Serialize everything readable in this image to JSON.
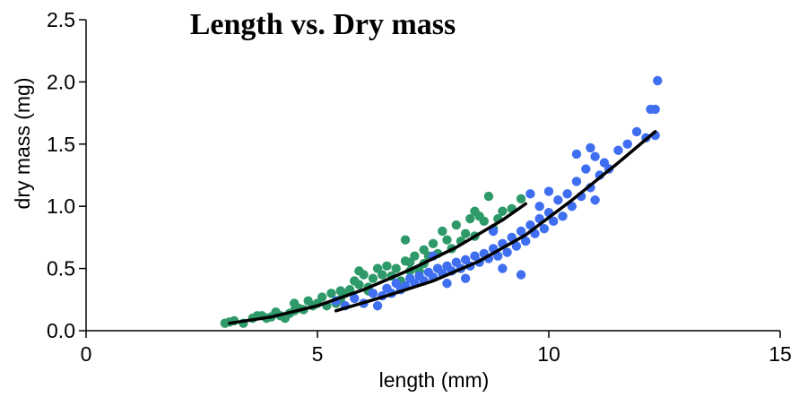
{
  "chart_data": {
    "type": "scatter",
    "title": "Length vs. Dry mass",
    "xlabel": "length (mm)",
    "ylabel": "dry mass (mg)",
    "xlim": [
      0,
      15
    ],
    "ylim": [
      0,
      2.5
    ],
    "xticks": [
      0,
      5,
      10,
      15
    ],
    "xtick_labels": [
      "0",
      "5",
      "10",
      "15"
    ],
    "yticks": [
      0,
      0.5,
      1.0,
      1.5,
      2.0,
      2.5
    ],
    "ytick_labels": [
      "0.0",
      "0.5",
      "1.0",
      "1.5",
      "2.0",
      "2.5"
    ],
    "grid": false,
    "colors": {
      "green": "#2e9a6a",
      "blue": "#3f6ff0",
      "fit": "#000000"
    },
    "series": [
      {
        "color": "#2e9a6a",
        "points": [
          [
            3.0,
            0.06
          ],
          [
            3.1,
            0.07
          ],
          [
            3.2,
            0.08
          ],
          [
            3.4,
            0.06
          ],
          [
            3.6,
            0.1
          ],
          [
            3.7,
            0.12
          ],
          [
            3.8,
            0.12
          ],
          [
            3.9,
            0.1
          ],
          [
            4.0,
            0.11
          ],
          [
            4.1,
            0.15
          ],
          [
            4.2,
            0.12
          ],
          [
            4.3,
            0.1
          ],
          [
            4.4,
            0.14
          ],
          [
            4.5,
            0.16
          ],
          [
            4.6,
            0.18
          ],
          [
            4.7,
            0.17
          ],
          [
            4.8,
            0.24
          ],
          [
            4.9,
            0.2
          ],
          [
            5.0,
            0.22
          ],
          [
            5.1,
            0.27
          ],
          [
            5.2,
            0.2
          ],
          [
            5.3,
            0.3
          ],
          [
            5.4,
            0.22
          ],
          [
            5.5,
            0.25
          ],
          [
            5.6,
            0.3
          ],
          [
            5.7,
            0.33
          ],
          [
            5.8,
            0.4
          ],
          [
            5.9,
            0.37
          ],
          [
            6.0,
            0.45
          ],
          [
            6.1,
            0.35
          ],
          [
            6.2,
            0.42
          ],
          [
            6.3,
            0.5
          ],
          [
            6.4,
            0.45
          ],
          [
            6.5,
            0.52
          ],
          [
            6.6,
            0.44
          ],
          [
            6.7,
            0.5
          ],
          [
            6.8,
            0.4
          ],
          [
            6.9,
            0.56
          ],
          [
            7.0,
            0.55
          ],
          [
            7.1,
            0.6
          ],
          [
            7.2,
            0.48
          ],
          [
            7.3,
            0.65
          ],
          [
            7.4,
            0.6
          ],
          [
            7.5,
            0.7
          ],
          [
            7.6,
            0.62
          ],
          [
            7.7,
            0.8
          ],
          [
            7.8,
            0.73
          ],
          [
            7.9,
            0.66
          ],
          [
            8.0,
            0.85
          ],
          [
            8.1,
            0.72
          ],
          [
            8.2,
            0.78
          ],
          [
            8.3,
            0.9
          ],
          [
            8.4,
            0.76
          ],
          [
            8.5,
            0.92
          ],
          [
            8.6,
            0.88
          ],
          [
            8.7,
            1.08
          ],
          [
            8.8,
            0.82
          ],
          [
            9.0,
            0.96
          ],
          [
            9.2,
            0.98
          ],
          [
            9.4,
            1.06
          ],
          [
            6.9,
            0.73
          ],
          [
            7.6,
            0.5
          ],
          [
            5.5,
            0.32
          ],
          [
            4.5,
            0.22
          ],
          [
            6.1,
            0.32
          ],
          [
            8.9,
            0.9
          ],
          [
            7.3,
            0.54
          ],
          [
            5.9,
            0.48
          ],
          [
            8.4,
            0.96
          ],
          [
            7.0,
            0.48
          ]
        ]
      },
      {
        "color": "#3f6ff0",
        "points": [
          [
            5.4,
            0.24
          ],
          [
            5.6,
            0.2
          ],
          [
            5.8,
            0.26
          ],
          [
            6.0,
            0.22
          ],
          [
            6.2,
            0.3
          ],
          [
            6.4,
            0.28
          ],
          [
            6.5,
            0.34
          ],
          [
            6.6,
            0.3
          ],
          [
            6.7,
            0.38
          ],
          [
            6.8,
            0.33
          ],
          [
            6.9,
            0.36
          ],
          [
            7.0,
            0.42
          ],
          [
            7.1,
            0.38
          ],
          [
            7.2,
            0.44
          ],
          [
            7.3,
            0.4
          ],
          [
            7.4,
            0.47
          ],
          [
            7.5,
            0.43
          ],
          [
            7.6,
            0.5
          ],
          [
            7.7,
            0.46
          ],
          [
            7.8,
            0.52
          ],
          [
            7.9,
            0.48
          ],
          [
            8.0,
            0.55
          ],
          [
            8.1,
            0.5
          ],
          [
            8.2,
            0.57
          ],
          [
            8.3,
            0.52
          ],
          [
            8.4,
            0.6
          ],
          [
            8.5,
            0.55
          ],
          [
            8.6,
            0.62
          ],
          [
            8.7,
            0.58
          ],
          [
            8.8,
            0.66
          ],
          [
            8.9,
            0.6
          ],
          [
            9.0,
            0.7
          ],
          [
            9.1,
            0.63
          ],
          [
            9.2,
            0.75
          ],
          [
            9.3,
            0.68
          ],
          [
            9.4,
            0.8
          ],
          [
            9.5,
            0.72
          ],
          [
            9.6,
            0.85
          ],
          [
            9.7,
            0.78
          ],
          [
            9.8,
            0.9
          ],
          [
            9.9,
            0.82
          ],
          [
            10.0,
            0.95
          ],
          [
            10.1,
            0.88
          ],
          [
            10.2,
            1.05
          ],
          [
            10.3,
            0.92
          ],
          [
            10.4,
            1.1
          ],
          [
            10.5,
            1.0
          ],
          [
            10.6,
            1.2
          ],
          [
            10.7,
            1.08
          ],
          [
            10.8,
            1.3
          ],
          [
            10.9,
            1.15
          ],
          [
            11.0,
            1.4
          ],
          [
            11.1,
            1.25
          ],
          [
            11.2,
            1.35
          ],
          [
            11.3,
            1.3
          ],
          [
            11.5,
            1.45
          ],
          [
            11.7,
            1.5
          ],
          [
            11.9,
            1.6
          ],
          [
            12.1,
            1.55
          ],
          [
            12.2,
            1.78
          ],
          [
            12.3,
            1.78
          ],
          [
            12.35,
            2.01
          ],
          [
            12.3,
            1.57
          ],
          [
            9.4,
            0.45
          ],
          [
            9.6,
            1.1
          ],
          [
            8.8,
            0.8
          ],
          [
            7.5,
            0.6
          ],
          [
            9.0,
            0.5
          ],
          [
            10.0,
            1.12
          ],
          [
            10.6,
            1.42
          ],
          [
            11.0,
            1.05
          ],
          [
            8.2,
            0.42
          ],
          [
            6.3,
            0.2
          ],
          [
            9.8,
            1.0
          ],
          [
            10.9,
            1.47
          ],
          [
            7.8,
            0.38
          ]
        ]
      }
    ],
    "fits": [
      {
        "color": "#000000",
        "x": [
          3.1,
          4.0,
          5.0,
          6.0,
          7.0,
          8.0,
          9.0,
          9.5
        ],
        "y": [
          0.06,
          0.11,
          0.2,
          0.33,
          0.49,
          0.67,
          0.89,
          1.02
        ]
      },
      {
        "color": "#000000",
        "x": [
          5.4,
          6.5,
          7.5,
          8.5,
          9.5,
          10.5,
          11.5,
          12.3
        ],
        "y": [
          0.16,
          0.28,
          0.4,
          0.56,
          0.77,
          1.05,
          1.35,
          1.6
        ]
      }
    ]
  }
}
